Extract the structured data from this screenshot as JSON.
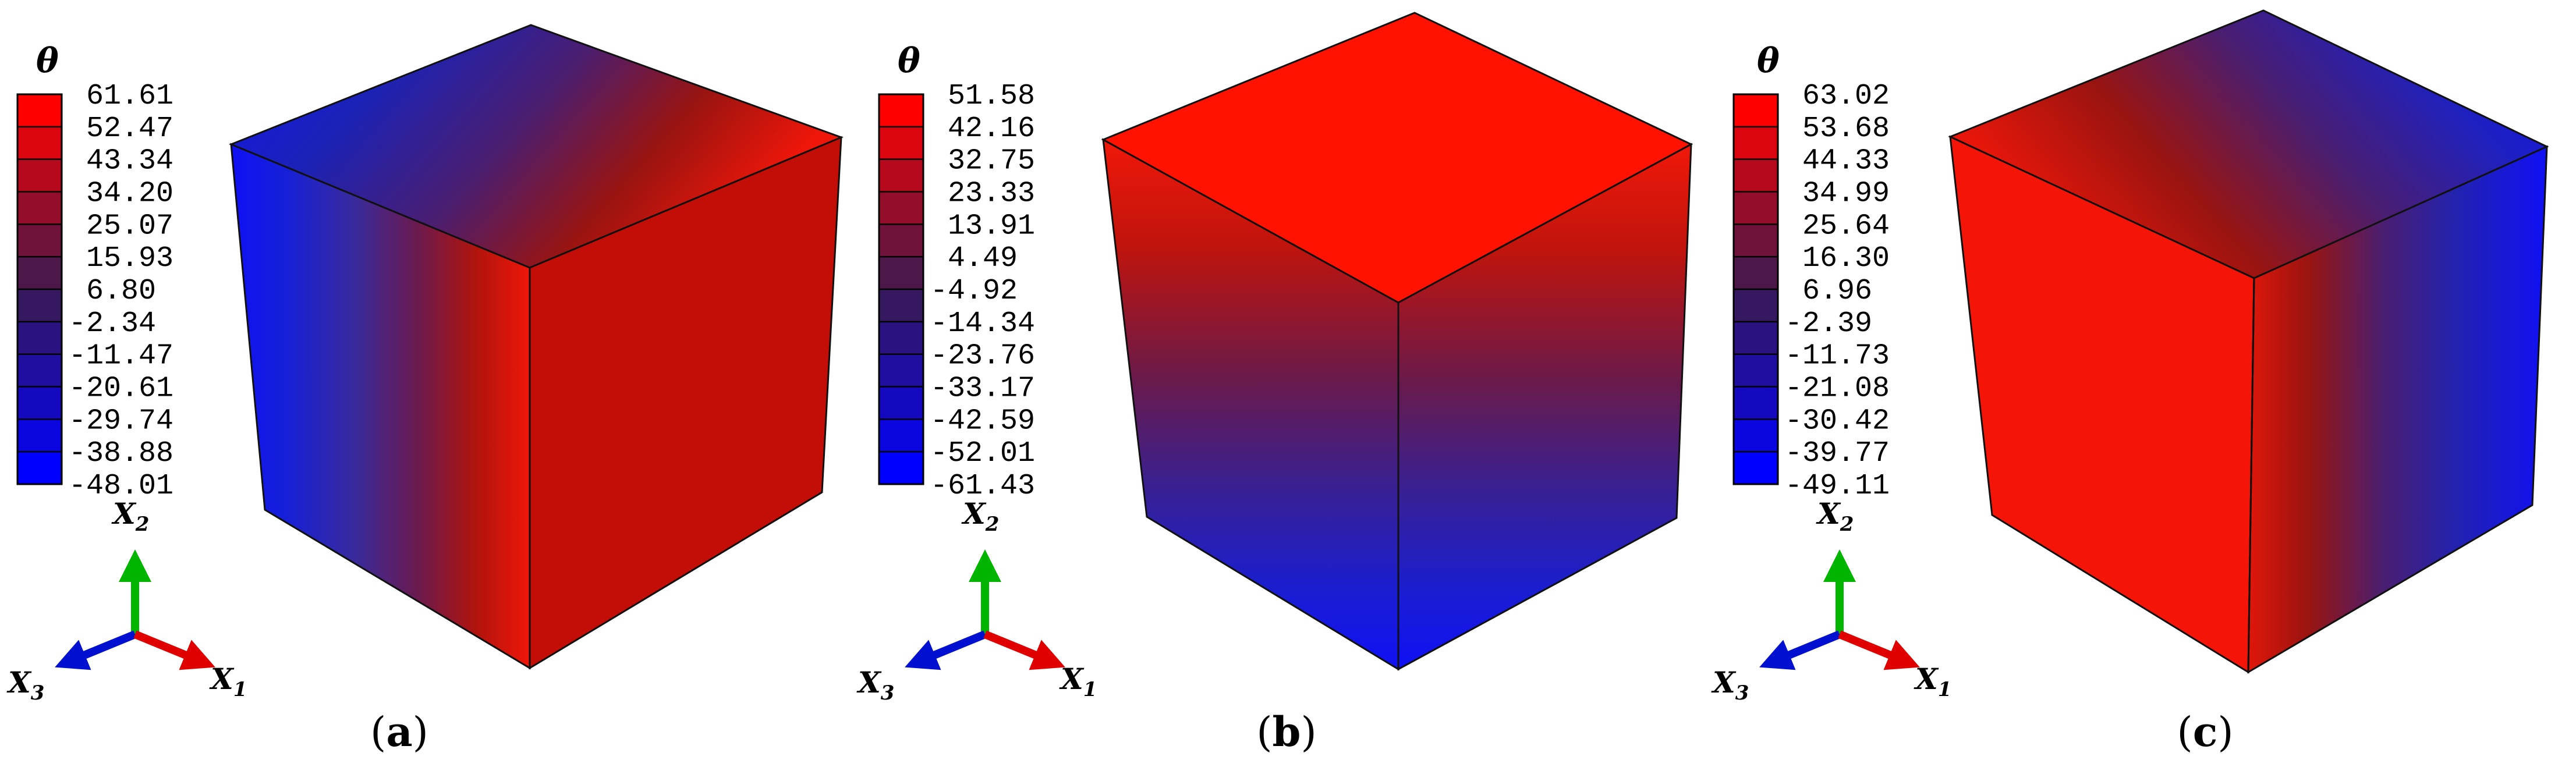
{
  "figure": {
    "panels": [
      {
        "id": "a",
        "caption_open": "(",
        "caption_letter": "a",
        "caption_close": ")",
        "colorbar": {
          "symbol": "θ",
          "max_color": "#ff0000",
          "min_color": "#0000ff",
          "ticks": [
            "61.61",
            "52.47",
            "43.34",
            "34.20",
            "25.07",
            "15.93",
            "6.80",
            "-2.34",
            "-11.47",
            "-20.61",
            "-29.74",
            "-38.88",
            "-48.01"
          ]
        },
        "axes": {
          "x1": "X",
          "x1_sub": "1",
          "x2": "X",
          "x2_sub": "2",
          "x3": "X",
          "x3_sub": "3"
        },
        "cube": {
          "gradient": "x1",
          "top_from": "#1c22c8",
          "top_to": "#e0140c",
          "left_from": "#1414f0",
          "left_to": "#e8140c",
          "right": "#c60f08"
        }
      },
      {
        "id": "b",
        "caption_open": "(",
        "caption_letter": "b",
        "caption_close": ")",
        "colorbar": {
          "symbol": "θ",
          "max_color": "#ff0000",
          "min_color": "#0000ff",
          "ticks": [
            "51.58",
            "42.16",
            "32.75",
            "23.33",
            "13.91",
            "4.49",
            "-4.92",
            "-14.34",
            "-23.76",
            "-33.17",
            "-42.59",
            "-52.01",
            "-61.43"
          ]
        },
        "axes": {
          "x1": "X",
          "x1_sub": "1",
          "x2": "X",
          "x2_sub": "2",
          "x3": "X",
          "x3_sub": "3"
        },
        "cube": {
          "gradient": "x2",
          "top": "#ff1200",
          "vert_from": "#e8140c",
          "vert_to": "#1414f0"
        }
      },
      {
        "id": "c",
        "caption_open": "(",
        "caption_letter": "c",
        "caption_close": ")",
        "colorbar": {
          "symbol": "θ",
          "max_color": "#ff0000",
          "min_color": "#0000ff",
          "ticks": [
            "63.02",
            "53.68",
            "44.33",
            "34.99",
            "25.64",
            "16.30",
            "6.96",
            "-2.39",
            "-11.73",
            "-21.08",
            "-30.42",
            "-39.77",
            "-49.11"
          ]
        },
        "axes": {
          "x1": "X",
          "x1_sub": "1",
          "x2": "X",
          "x2_sub": "2",
          "x3": "X",
          "x3_sub": "3"
        },
        "cube": {
          "gradient": "x3",
          "left": "#f51408",
          "top_from": "#e8140c",
          "top_to": "#1414f0",
          "right_from": "#d0140c",
          "right_to": "#1414f0"
        }
      }
    ]
  }
}
